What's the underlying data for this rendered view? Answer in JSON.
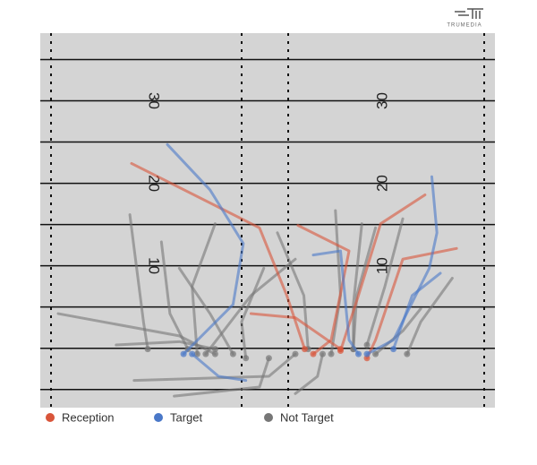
{
  "brand": "TRUMEDIA",
  "chart_data": {
    "type": "routes",
    "xlim": [
      0,
      53.3
    ],
    "ylim": [
      -7.2,
      38.2
    ],
    "yard_lines": [
      -5,
      0,
      5,
      10,
      15,
      20,
      25,
      30,
      35
    ],
    "yard_numbers": [
      10,
      20,
      30
    ],
    "series": [
      {
        "name": "Reception",
        "color": "#d9553a",
        "routes": [
          [
            [
              10.7,
              22.4
            ],
            [
              25.7,
              14.6
            ],
            [
              28.9,
              6.4
            ],
            [
              31.0,
              -0.1
            ]
          ],
          [
            [
              45.1,
              18.6
            ],
            [
              39.9,
              15.1
            ],
            [
              37.3,
              6.4
            ],
            [
              35.2,
              -0.3
            ]
          ],
          [
            [
              48.8,
              12.1
            ],
            [
              42.5,
              10.8
            ],
            [
              39.3,
              1.0
            ],
            [
              38.3,
              -1.2
            ]
          ],
          [
            [
              30.2,
              14.9
            ],
            [
              36.2,
              11.8
            ],
            [
              34.1,
              1.0
            ],
            [
              32.0,
              -0.7
            ]
          ],
          [
            [
              24.7,
              4.2
            ],
            [
              29.9,
              3.7
            ],
            [
              35.2,
              -0.1
            ]
          ]
        ]
      },
      {
        "name": "Target",
        "color": "#4a78c8",
        "routes": [
          [
            [
              14.9,
              24.7
            ],
            [
              19.9,
              19.2
            ],
            [
              23.8,
              12.7
            ],
            [
              22.6,
              5.3
            ],
            [
              16.8,
              -0.7
            ]
          ],
          [
            [
              45.9,
              20.8
            ],
            [
              46.5,
              14.0
            ],
            [
              45.6,
              9.7
            ],
            [
              41.4,
              1.0
            ],
            [
              38.3,
              -0.7
            ]
          ],
          [
            [
              46.9,
              9.1
            ],
            [
              43.6,
              6.4
            ],
            [
              41.4,
              -0.1
            ]
          ],
          [
            [
              32.0,
              11.3
            ],
            [
              35.2,
              11.8
            ],
            [
              36.2,
              1.0
            ],
            [
              37.3,
              -0.7
            ]
          ],
          [
            [
              24.1,
              -3.9
            ],
            [
              20.9,
              -3.4
            ],
            [
              17.8,
              -0.7
            ]
          ]
        ]
      },
      {
        "name": "Not Target",
        "color": "#777777",
        "routes": [
          [
            [
              10.5,
              16.2
            ],
            [
              12.1,
              3.2
            ],
            [
              12.6,
              -0.1
            ]
          ],
          [
            [
              2.1,
              4.2
            ],
            [
              16.3,
              1.5
            ],
            [
              20.5,
              -0.7
            ]
          ],
          [
            [
              29.9,
              10.8
            ],
            [
              24.7,
              6.4
            ],
            [
              19.4,
              -0.7
            ]
          ],
          [
            [
              34.6,
              16.7
            ],
            [
              35.2,
              6.4
            ],
            [
              34.1,
              -0.7
            ]
          ],
          [
            [
              11.0,
              -3.9
            ],
            [
              26.8,
              -3.4
            ],
            [
              29.9,
              -0.7
            ]
          ],
          [
            [
              15.7,
              -5.8
            ],
            [
              25.7,
              -4.7
            ],
            [
              26.8,
              -1.2
            ]
          ],
          [
            [
              14.2,
              12.9
            ],
            [
              15.2,
              4.2
            ],
            [
              17.3,
              -0.1
            ]
          ],
          [
            [
              20.5,
              15.1
            ],
            [
              17.8,
              7.5
            ],
            [
              18.4,
              -0.7
            ]
          ],
          [
            [
              39.3,
              14.6
            ],
            [
              37.1,
              6.4
            ],
            [
              36.7,
              -0.1
            ]
          ],
          [
            [
              42.5,
              15.7
            ],
            [
              40.4,
              7.5
            ],
            [
              38.3,
              0.4
            ]
          ],
          [
            [
              44.6,
              4.8
            ],
            [
              42.5,
              2.1
            ],
            [
              39.3,
              -0.7
            ]
          ],
          [
            [
              27.8,
              14.0
            ],
            [
              30.9,
              6.4
            ],
            [
              31.4,
              -0.1
            ]
          ],
          [
            [
              29.9,
              -5.5
            ],
            [
              32.5,
              -3.4
            ],
            [
              33.1,
              -0.7
            ]
          ],
          [
            [
              16.3,
              9.7
            ],
            [
              19.9,
              4.2
            ],
            [
              22.6,
              -0.7
            ]
          ],
          [
            [
              8.9,
              0.4
            ],
            [
              16.3,
              0.8
            ],
            [
              20.5,
              -0.1
            ]
          ],
          [
            [
              26.2,
              9.7
            ],
            [
              23.6,
              3.2
            ],
            [
              24.1,
              -1.2
            ]
          ],
          [
            [
              48.3,
              8.5
            ],
            [
              44.6,
              3.2
            ],
            [
              43.0,
              -0.7
            ]
          ],
          [
            [
              37.7,
              15.1
            ],
            [
              36.7,
              5.3
            ],
            [
              36.7,
              -0.1
            ]
          ]
        ]
      }
    ]
  }
}
